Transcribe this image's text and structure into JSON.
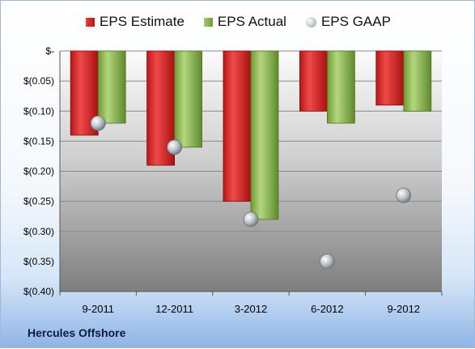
{
  "company": "Hercules Offshore",
  "chart_data": {
    "type": "bar",
    "categories": [
      "9-2011",
      "12-2011",
      "3-2012",
      "6-2012",
      "9-2012"
    ],
    "series": [
      {
        "name": "EPS Estimate",
        "kind": "bar",
        "color": "#c8201e",
        "values": [
          -0.14,
          -0.19,
          -0.25,
          -0.1,
          -0.09
        ]
      },
      {
        "name": "EPS Actual",
        "kind": "bar",
        "color": "#86ad4a",
        "values": [
          -0.12,
          -0.16,
          -0.28,
          -0.12,
          -0.1
        ]
      },
      {
        "name": "EPS GAAP",
        "kind": "point",
        "color": "#a9aeb6",
        "values": [
          -0.12,
          -0.16,
          -0.28,
          -0.35,
          -0.24
        ]
      }
    ],
    "ylim": [
      -0.4,
      0
    ],
    "yticks": [
      {
        "value": 0,
        "label": "$-"
      },
      {
        "value": -0.05,
        "label": "$(0.05)"
      },
      {
        "value": -0.1,
        "label": "$(0.10)"
      },
      {
        "value": -0.15,
        "label": "$(0.15)"
      },
      {
        "value": -0.2,
        "label": "$(0.20)"
      },
      {
        "value": -0.25,
        "label": "$(0.25)"
      },
      {
        "value": -0.3,
        "label": "$(0.30)"
      },
      {
        "value": -0.35,
        "label": "$(0.35)"
      },
      {
        "value": -0.4,
        "label": "$(0.40)"
      }
    ],
    "grid": true,
    "legend_position": "top"
  }
}
